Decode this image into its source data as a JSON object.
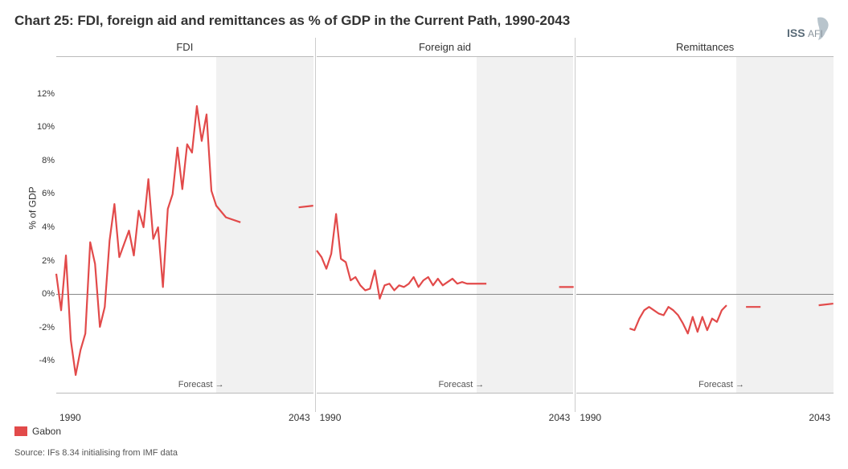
{
  "title": "Chart 25: FDI, foreign aid and remittances as % of GDP in the Current Path, 1990-2043",
  "logo_text": "ISS AFI",
  "yaxis_label": "% of GDP",
  "xaxis": {
    "start_label": "1990",
    "end_label": "2043",
    "min": 1990,
    "max": 2043,
    "forecast_start": 2023,
    "forecast_label": "Forecast →"
  },
  "yaxis": {
    "min": -5,
    "max": 13,
    "ticks": [
      -4,
      -2,
      0,
      2,
      4,
      6,
      8,
      10,
      12
    ],
    "tick_suffix": "%"
  },
  "line_color": "#e24a4a",
  "line_width": 2.2,
  "grid_color": "#888888",
  "shade_color": "#f1f1f1",
  "font_family": "Arial",
  "panels": [
    {
      "title": "FDI",
      "data": [
        [
          1990,
          1.2
        ],
        [
          1991,
          -1.0
        ],
        [
          1992,
          2.3
        ],
        [
          1993,
          -2.8
        ],
        [
          1994,
          -4.9
        ],
        [
          1995,
          -3.4
        ],
        [
          1996,
          -2.4
        ],
        [
          1997,
          3.1
        ],
        [
          1998,
          1.8
        ],
        [
          1999,
          -2.0
        ],
        [
          2000,
          -0.8
        ],
        [
          2001,
          3.2
        ],
        [
          2002,
          5.4
        ],
        [
          2003,
          2.2
        ],
        [
          2004,
          3.0
        ],
        [
          2005,
          3.8
        ],
        [
          2006,
          2.3
        ],
        [
          2007,
          5.0
        ],
        [
          2008,
          4.0
        ],
        [
          2009,
          6.9
        ],
        [
          2010,
          3.3
        ],
        [
          2011,
          4.0
        ],
        [
          2012,
          0.4
        ],
        [
          2013,
          5.1
        ],
        [
          2014,
          6.0
        ],
        [
          2015,
          8.8
        ],
        [
          2016,
          6.3
        ],
        [
          2017,
          9.0
        ],
        [
          2018,
          8.5
        ],
        [
          2019,
          11.3
        ],
        [
          2020,
          9.2
        ],
        [
          2021,
          10.8
        ],
        [
          2022,
          6.2
        ],
        [
          2023,
          5.3
        ],
        [
          2025,
          4.6
        ],
        [
          2028,
          4.3
        ],
        [
          2032,
          4.6
        ],
        [
          2036,
          5.0
        ],
        [
          2040,
          5.2
        ],
        [
          2043,
          5.3
        ]
      ]
    },
    {
      "title": "Foreign aid",
      "data": [
        [
          1990,
          2.6
        ],
        [
          1991,
          2.2
        ],
        [
          1992,
          1.5
        ],
        [
          1993,
          2.4
        ],
        [
          1994,
          4.8
        ],
        [
          1995,
          2.1
        ],
        [
          1996,
          1.9
        ],
        [
          1997,
          0.8
        ],
        [
          1998,
          1.0
        ],
        [
          1999,
          0.5
        ],
        [
          2000,
          0.2
        ],
        [
          2001,
          0.3
        ],
        [
          2002,
          1.4
        ],
        [
          2003,
          -0.3
        ],
        [
          2004,
          0.5
        ],
        [
          2005,
          0.6
        ],
        [
          2006,
          0.2
        ],
        [
          2007,
          0.5
        ],
        [
          2008,
          0.4
        ],
        [
          2009,
          0.6
        ],
        [
          2010,
          1.0
        ],
        [
          2011,
          0.4
        ],
        [
          2012,
          0.8
        ],
        [
          2013,
          1.0
        ],
        [
          2014,
          0.5
        ],
        [
          2015,
          0.9
        ],
        [
          2016,
          0.5
        ],
        [
          2017,
          0.7
        ],
        [
          2018,
          0.9
        ],
        [
          2019,
          0.6
        ],
        [
          2020,
          0.7
        ],
        [
          2021,
          0.6
        ],
        [
          2022,
          0.6
        ],
        [
          2025,
          0.6
        ],
        [
          2030,
          0.5
        ],
        [
          2035,
          0.5
        ],
        [
          2040,
          0.4
        ],
        [
          2043,
          0.4
        ]
      ]
    },
    {
      "title": "Remittances",
      "data": [
        [
          2001,
          -2.1
        ],
        [
          2002,
          -2.2
        ],
        [
          2003,
          -1.5
        ],
        [
          2004,
          -1.0
        ],
        [
          2005,
          -0.8
        ],
        [
          2006,
          -1.0
        ],
        [
          2007,
          -1.2
        ],
        [
          2008,
          -1.3
        ],
        [
          2009,
          -0.8
        ],
        [
          2010,
          -1.0
        ],
        [
          2011,
          -1.3
        ],
        [
          2012,
          -1.8
        ],
        [
          2013,
          -2.4
        ],
        [
          2014,
          -1.4
        ],
        [
          2015,
          -2.3
        ],
        [
          2016,
          -1.4
        ],
        [
          2017,
          -2.2
        ],
        [
          2018,
          -1.5
        ],
        [
          2019,
          -1.7
        ],
        [
          2020,
          -1.0
        ],
        [
          2021,
          -0.7
        ],
        [
          2025,
          -0.8
        ],
        [
          2028,
          -0.8
        ],
        [
          2032,
          -0.8
        ],
        [
          2036,
          -0.7
        ],
        [
          2040,
          -0.7
        ],
        [
          2043,
          -0.6
        ]
      ]
    }
  ],
  "legend": {
    "label": "Gabon",
    "color": "#e24a4a"
  },
  "source": "Source: IFs 8.34 initialising from IMF data"
}
